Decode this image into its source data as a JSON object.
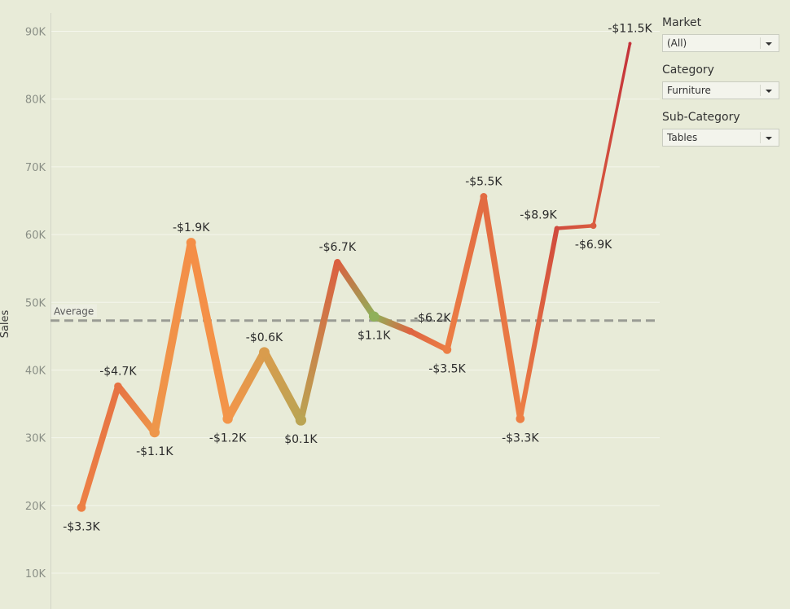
{
  "filters": {
    "market": {
      "title": "Market",
      "value": "(All)"
    },
    "category": {
      "title": "Category",
      "value": "Furniture"
    },
    "sub_category": {
      "title": "Sub-Category",
      "value": "Tables"
    }
  },
  "average_label": "Average",
  "colors": {
    "background": "#e8ebd8",
    "profit_positive": "#8fb05a",
    "profit_small_negative": "#f79448",
    "profit_large_negative": "#c4323a",
    "average_line": "#9a9c94"
  },
  "chart_data": {
    "type": "line",
    "ylabel": "Sales",
    "ylim": [
      7000,
      93000
    ],
    "y_ticks": [
      10000,
      20000,
      30000,
      40000,
      50000,
      60000,
      70000,
      80000,
      90000
    ],
    "y_tick_labels": [
      "10K",
      "20K",
      "30K",
      "40K",
      "50K",
      "60K",
      "70K",
      "80K",
      "90K"
    ],
    "grid": true,
    "average": 47300,
    "series": [
      {
        "sales": [
          19700,
          37600,
          30800,
          58800,
          32800,
          42600,
          32600,
          55900,
          47900,
          45700,
          43000,
          65600,
          32800,
          60900,
          61300,
          88200
        ],
        "profit": [
          -3.3,
          -4.7,
          -1.1,
          -1.9,
          -1.2,
          -0.6,
          0.1,
          -6.7,
          1.1,
          -6.2,
          -3.5,
          -5.5,
          -3.3,
          -8.9,
          -6.9,
          -11.5
        ],
        "labels": [
          "-$3.3K",
          "-$4.7K",
          "-$1.1K",
          "-$1.9K",
          "-$1.2K",
          "-$0.6K",
          "$0.1K",
          "-$6.7K",
          "$1.1K",
          "-$6.2K",
          "-$3.5K",
          "-$5.5K",
          "-$3.3K",
          "-$8.9K",
          "-$6.9K",
          "-$11.5K"
        ],
        "label_position": [
          "below",
          "above",
          "below",
          "above",
          "below",
          "above",
          "below",
          "above",
          "below",
          "right",
          "below",
          "above",
          "below",
          "left",
          "below",
          "above"
        ]
      }
    ]
  }
}
